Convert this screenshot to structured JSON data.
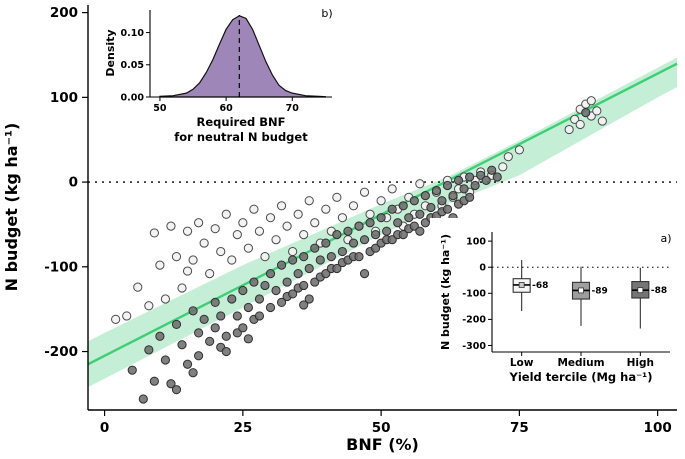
{
  "chart_data": [
    {
      "id": "main",
      "type": "scatter",
      "xlabel": "BNF (%)",
      "ylabel": "N budget (kg ha⁻¹)",
      "xlim": [
        -3,
        103.5
      ],
      "ylim": [
        -269,
        209
      ],
      "xticks": [
        0,
        25,
        50,
        75,
        100
      ],
      "yticks": [
        -200,
        -100,
        0,
        100,
        200
      ],
      "hline": {
        "y": 0,
        "style": "dotted",
        "color": "#000000"
      },
      "regression": {
        "x": [
          -3,
          103.5
        ],
        "y": [
          -215,
          139.7
        ],
        "color": "#3dcf74",
        "band": {
          "x": [
            -3,
            0,
            25,
            50,
            62,
            75,
            100,
            103.5
          ],
          "upper": [
            -188,
            -178,
            -98,
            -26,
            6,
            49,
            135,
            147
          ],
          "lower": [
            -242,
            -232,
            -148,
            -62,
            -26,
            8,
            100,
            112
          ],
          "color": "#93e2b4",
          "opacity": 0.55
        }
      },
      "series": [
        {
          "name": "open-circles",
          "marker": "circle",
          "fill": "#f2f2f2",
          "stroke": "#4a4a4a",
          "opacity": 0.92,
          "points": [
            [
              2,
              -162
            ],
            [
              4,
              -158
            ],
            [
              6,
              -124
            ],
            [
              8,
              -146
            ],
            [
              9,
              -60
            ],
            [
              10,
              -98
            ],
            [
              11,
              -138
            ],
            [
              12,
              -52
            ],
            [
              13,
              -88
            ],
            [
              14,
              -125
            ],
            [
              15,
              -58
            ],
            [
              15,
              -105
            ],
            [
              16,
              -92
            ],
            [
              17,
              -48
            ],
            [
              18,
              -72
            ],
            [
              19,
              -108
            ],
            [
              20,
              -55
            ],
            [
              21,
              -82
            ],
            [
              22,
              -38
            ],
            [
              23,
              -92
            ],
            [
              24,
              -62
            ],
            [
              25,
              -48
            ],
            [
              26,
              -78
            ],
            [
              27,
              -32
            ],
            [
              28,
              -58
            ],
            [
              29,
              -88
            ],
            [
              30,
              -42
            ],
            [
              31,
              -68
            ],
            [
              32,
              -28
            ],
            [
              33,
              -52
            ],
            [
              34,
              -82
            ],
            [
              35,
              -38
            ],
            [
              36,
              -62
            ],
            [
              37,
              -22
            ],
            [
              38,
              -48
            ],
            [
              39,
              -72
            ],
            [
              40,
              -32
            ],
            [
              41,
              -58
            ],
            [
              42,
              -18
            ],
            [
              43,
              -42
            ],
            [
              44,
              -68
            ],
            [
              45,
              -28
            ],
            [
              46,
              -52
            ],
            [
              47,
              -12
            ],
            [
              48,
              -38
            ],
            [
              49,
              -58
            ],
            [
              50,
              -22
            ],
            [
              51,
              -42
            ],
            [
              52,
              -8
            ],
            [
              53,
              -32
            ],
            [
              54,
              -52
            ],
            [
              55,
              -18
            ],
            [
              56,
              -38
            ],
            [
              57,
              -2
            ],
            [
              58,
              -28
            ],
            [
              59,
              -42
            ],
            [
              60,
              -12
            ],
            [
              61,
              -28
            ],
            [
              62,
              2
            ],
            [
              63,
              -18
            ],
            [
              64,
              -8
            ],
            [
              65,
              6
            ],
            [
              66,
              -12
            ],
            [
              67,
              2
            ],
            [
              68,
              12
            ],
            [
              70,
              8
            ],
            [
              72,
              18
            ],
            [
              73,
              30
            ],
            [
              75,
              38
            ],
            [
              84,
              62
            ],
            [
              85,
              74
            ],
            [
              86,
              86
            ],
            [
              86,
              68
            ],
            [
              87,
              92
            ],
            [
              88,
              78
            ],
            [
              88,
              96
            ],
            [
              89,
              84
            ],
            [
              90,
              72
            ]
          ]
        },
        {
          "name": "filled-circles",
          "marker": "circle",
          "fill": "#6e6e6e",
          "stroke": "#2f2f2f",
          "opacity": 0.88,
          "points": [
            [
              5,
              -222
            ],
            [
              7,
              -256
            ],
            [
              8,
              -198
            ],
            [
              9,
              -235
            ],
            [
              10,
              -182
            ],
            [
              11,
              -210
            ],
            [
              12,
              -238
            ],
            [
              13,
              -168
            ],
            [
              13,
              -245
            ],
            [
              14,
              -192
            ],
            [
              15,
              -215
            ],
            [
              16,
              -152
            ],
            [
              16,
              -225
            ],
            [
              17,
              -178
            ],
            [
              17,
              -205
            ],
            [
              18,
              -162
            ],
            [
              19,
              -188
            ],
            [
              20,
              -142
            ],
            [
              20,
              -172
            ],
            [
              21,
              -158
            ],
            [
              21,
              -195
            ],
            [
              22,
              -182
            ],
            [
              22,
              -200
            ],
            [
              23,
              -138
            ],
            [
              24,
              -158
            ],
            [
              24,
              -178
            ],
            [
              25,
              -128
            ],
            [
              25,
              -172
            ],
            [
              26,
              -148
            ],
            [
              26,
              -185
            ],
            [
              27,
              -118
            ],
            [
              27,
              -162
            ],
            [
              28,
              -138
            ],
            [
              28,
              -158
            ],
            [
              29,
              -122
            ],
            [
              30,
              -108
            ],
            [
              30,
              -148
            ],
            [
              31,
              -128
            ],
            [
              32,
              -98
            ],
            [
              32,
              -142
            ],
            [
              33,
              -118
            ],
            [
              33,
              -135
            ],
            [
              34,
              -92
            ],
            [
              34,
              -132
            ],
            [
              35,
              -108
            ],
            [
              35,
              -125
            ],
            [
              36,
              -88
            ],
            [
              36,
              -122
            ],
            [
              36,
              -145
            ],
            [
              37,
              -102
            ],
            [
              37,
              -138
            ],
            [
              38,
              -78
            ],
            [
              38,
              -118
            ],
            [
              39,
              -92
            ],
            [
              39,
              -112
            ],
            [
              40,
              -72
            ],
            [
              40,
              -108
            ],
            [
              41,
              -88
            ],
            [
              41,
              -102
            ],
            [
              42,
              -62
            ],
            [
              42,
              -102
            ],
            [
              43,
              -82
            ],
            [
              43,
              -95
            ],
            [
              44,
              -58
            ],
            [
              44,
              -92
            ],
            [
              45,
              -72
            ],
            [
              45,
              -88
            ],
            [
              46,
              -52
            ],
            [
              46,
              -88
            ],
            [
              47,
              -68
            ],
            [
              47,
              -108
            ],
            [
              48,
              -48
            ],
            [
              48,
              -82
            ],
            [
              49,
              -62
            ],
            [
              49,
              -78
            ],
            [
              50,
              -42
            ],
            [
              50,
              -72
            ],
            [
              51,
              -58
            ],
            [
              51,
              -68
            ],
            [
              52,
              -32
            ],
            [
              52,
              -68
            ],
            [
              53,
              -48
            ],
            [
              53,
              -62
            ],
            [
              54,
              -28
            ],
            [
              54,
              -62
            ],
            [
              55,
              -42
            ],
            [
              55,
              -55
            ],
            [
              56,
              -22
            ],
            [
              56,
              -52
            ],
            [
              57,
              -38
            ],
            [
              57,
              -58
            ],
            [
              58,
              -16
            ],
            [
              58,
              -48
            ],
            [
              59,
              -30
            ],
            [
              59,
              -42
            ],
            [
              60,
              -10
            ],
            [
              60,
              -40
            ],
            [
              61,
              -22
            ],
            [
              61,
              -35
            ],
            [
              62,
              -4
            ],
            [
              62,
              -32
            ],
            [
              63,
              -16
            ],
            [
              63,
              -42
            ],
            [
              64,
              2
            ],
            [
              64,
              -26
            ],
            [
              65,
              -8
            ],
            [
              65,
              -22
            ],
            [
              66,
              6
            ],
            [
              66,
              -18
            ],
            [
              67,
              -4
            ],
            [
              68,
              8
            ],
            [
              69,
              2
            ],
            [
              70,
              14
            ],
            [
              71,
              6
            ],
            [
              87,
              82
            ]
          ]
        }
      ]
    },
    {
      "id": "density",
      "type": "area",
      "panel_label": "b)",
      "xlabel_lines": [
        "Required BNF",
        "for neutral N budget"
      ],
      "ylabel": "Density",
      "xlim": [
        48.5,
        76
      ],
      "ylim": [
        0,
        0.135
      ],
      "xticks": [
        50,
        60,
        70
      ],
      "yticks": [
        0,
        0.05,
        0.1
      ],
      "ytick_labels": [
        "0.00",
        "0.05",
        "0.10"
      ],
      "vline": {
        "x": 62,
        "style": "dashed",
        "color": "#111111"
      },
      "fill": "#8d72ab",
      "fill_opacity": 0.85,
      "stroke": "#111111",
      "x": [
        50,
        52,
        54,
        55,
        56,
        57,
        58,
        59,
        60,
        61,
        62,
        63,
        64,
        65,
        66,
        67,
        68,
        69,
        70,
        72,
        74,
        75
      ],
      "y": [
        0.001,
        0.002,
        0.006,
        0.012,
        0.022,
        0.038,
        0.058,
        0.082,
        0.105,
        0.12,
        0.126,
        0.122,
        0.105,
        0.08,
        0.055,
        0.034,
        0.018,
        0.01,
        0.006,
        0.002,
        0.001,
        0.0005
      ]
    },
    {
      "id": "boxplot",
      "type": "boxplot",
      "panel_label": "a)",
      "xlabel": "Yield tercile (Mg ha⁻¹)",
      "ylabel": "N budget (kg ha⁻¹)",
      "ylim": [
        -325,
        135
      ],
      "yticks": [
        100,
        0,
        -100,
        -200,
        -300
      ],
      "hline": {
        "y": 0,
        "style": "dotted",
        "color": "#000000"
      },
      "categories": [
        "Low",
        "Medium",
        "High"
      ],
      "boxes": [
        {
          "category": "Low",
          "median": -68,
          "q1": -96,
          "q3": -44,
          "whisker_low": -168,
          "whisker_high": 28,
          "fill": "#f5f5f5",
          "marker_fill": "#c9c9c9",
          "label": "-68"
        },
        {
          "category": "Medium",
          "median": -89,
          "q1": -122,
          "q3": -58,
          "whisker_low": -225,
          "whisker_high": 2,
          "fill": "#9e9e9e",
          "marker_fill": "#ffffff",
          "label": "-89"
        },
        {
          "category": "High",
          "median": -88,
          "q1": -118,
          "q3": -55,
          "whisker_low": -235,
          "whisker_high": -2,
          "fill": "#757575",
          "marker_fill": "#ffffff",
          "label": "-88"
        }
      ]
    }
  ]
}
